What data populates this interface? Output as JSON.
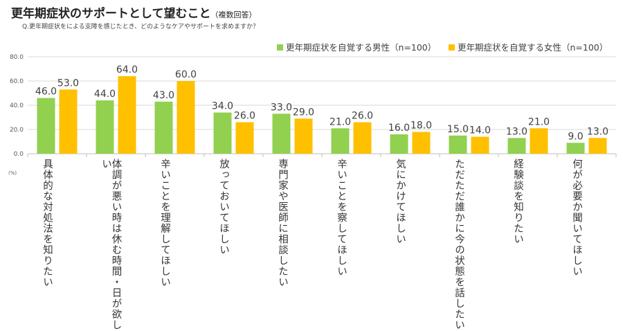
{
  "title": "更年期症状のサポートとして望むこと",
  "title_note": "（複数回答）",
  "subtitle": "Q.更年期症状をによる支障を感じたとき、どのようなケアやサポートを求めますか？",
  "chart_data": {
    "type": "bar",
    "ylabel": "(%)",
    "ylim": [
      0,
      80
    ],
    "yticks": [
      "0.0",
      "20.0",
      "40.0",
      "60.0",
      "80.0"
    ],
    "grid": true,
    "legend_position": "top-right",
    "categories": [
      "具体的な対処法を知りたい",
      "体調が悪い時は休む時間・日が欲しい",
      "辛いことを理解してほしい",
      "放っておいてほしい",
      "専門家や医師に相談したい",
      "辛いことを察してほしい",
      "気にかけてほしい",
      "ただただ誰かに今の状態を話したい",
      "経験談を知りたい",
      "何が必要か聞いてほしい"
    ],
    "series": [
      {
        "name": "更年期症状を自覚する男性（n=100）",
        "color": "#92d050",
        "values": [
          46,
          44,
          43,
          34,
          33,
          21,
          16,
          15,
          13,
          9
        ],
        "labels": [
          "46.0",
          "44.0",
          "43.0",
          "34.0",
          "33.0",
          "21.0",
          "16.0",
          "15.0",
          "13.0",
          "9.0"
        ]
      },
      {
        "name": "更年期症状を自覚する女性（n=100）",
        "color": "#ffc000",
        "values": [
          53,
          64,
          60,
          26,
          29,
          26,
          18,
          14,
          21,
          13
        ],
        "labels": [
          "53.0",
          "64.0",
          "60.0",
          "26.0",
          "29.0",
          "26.0",
          "18.0",
          "14.0",
          "21.0",
          "13.0"
        ]
      }
    ]
  }
}
